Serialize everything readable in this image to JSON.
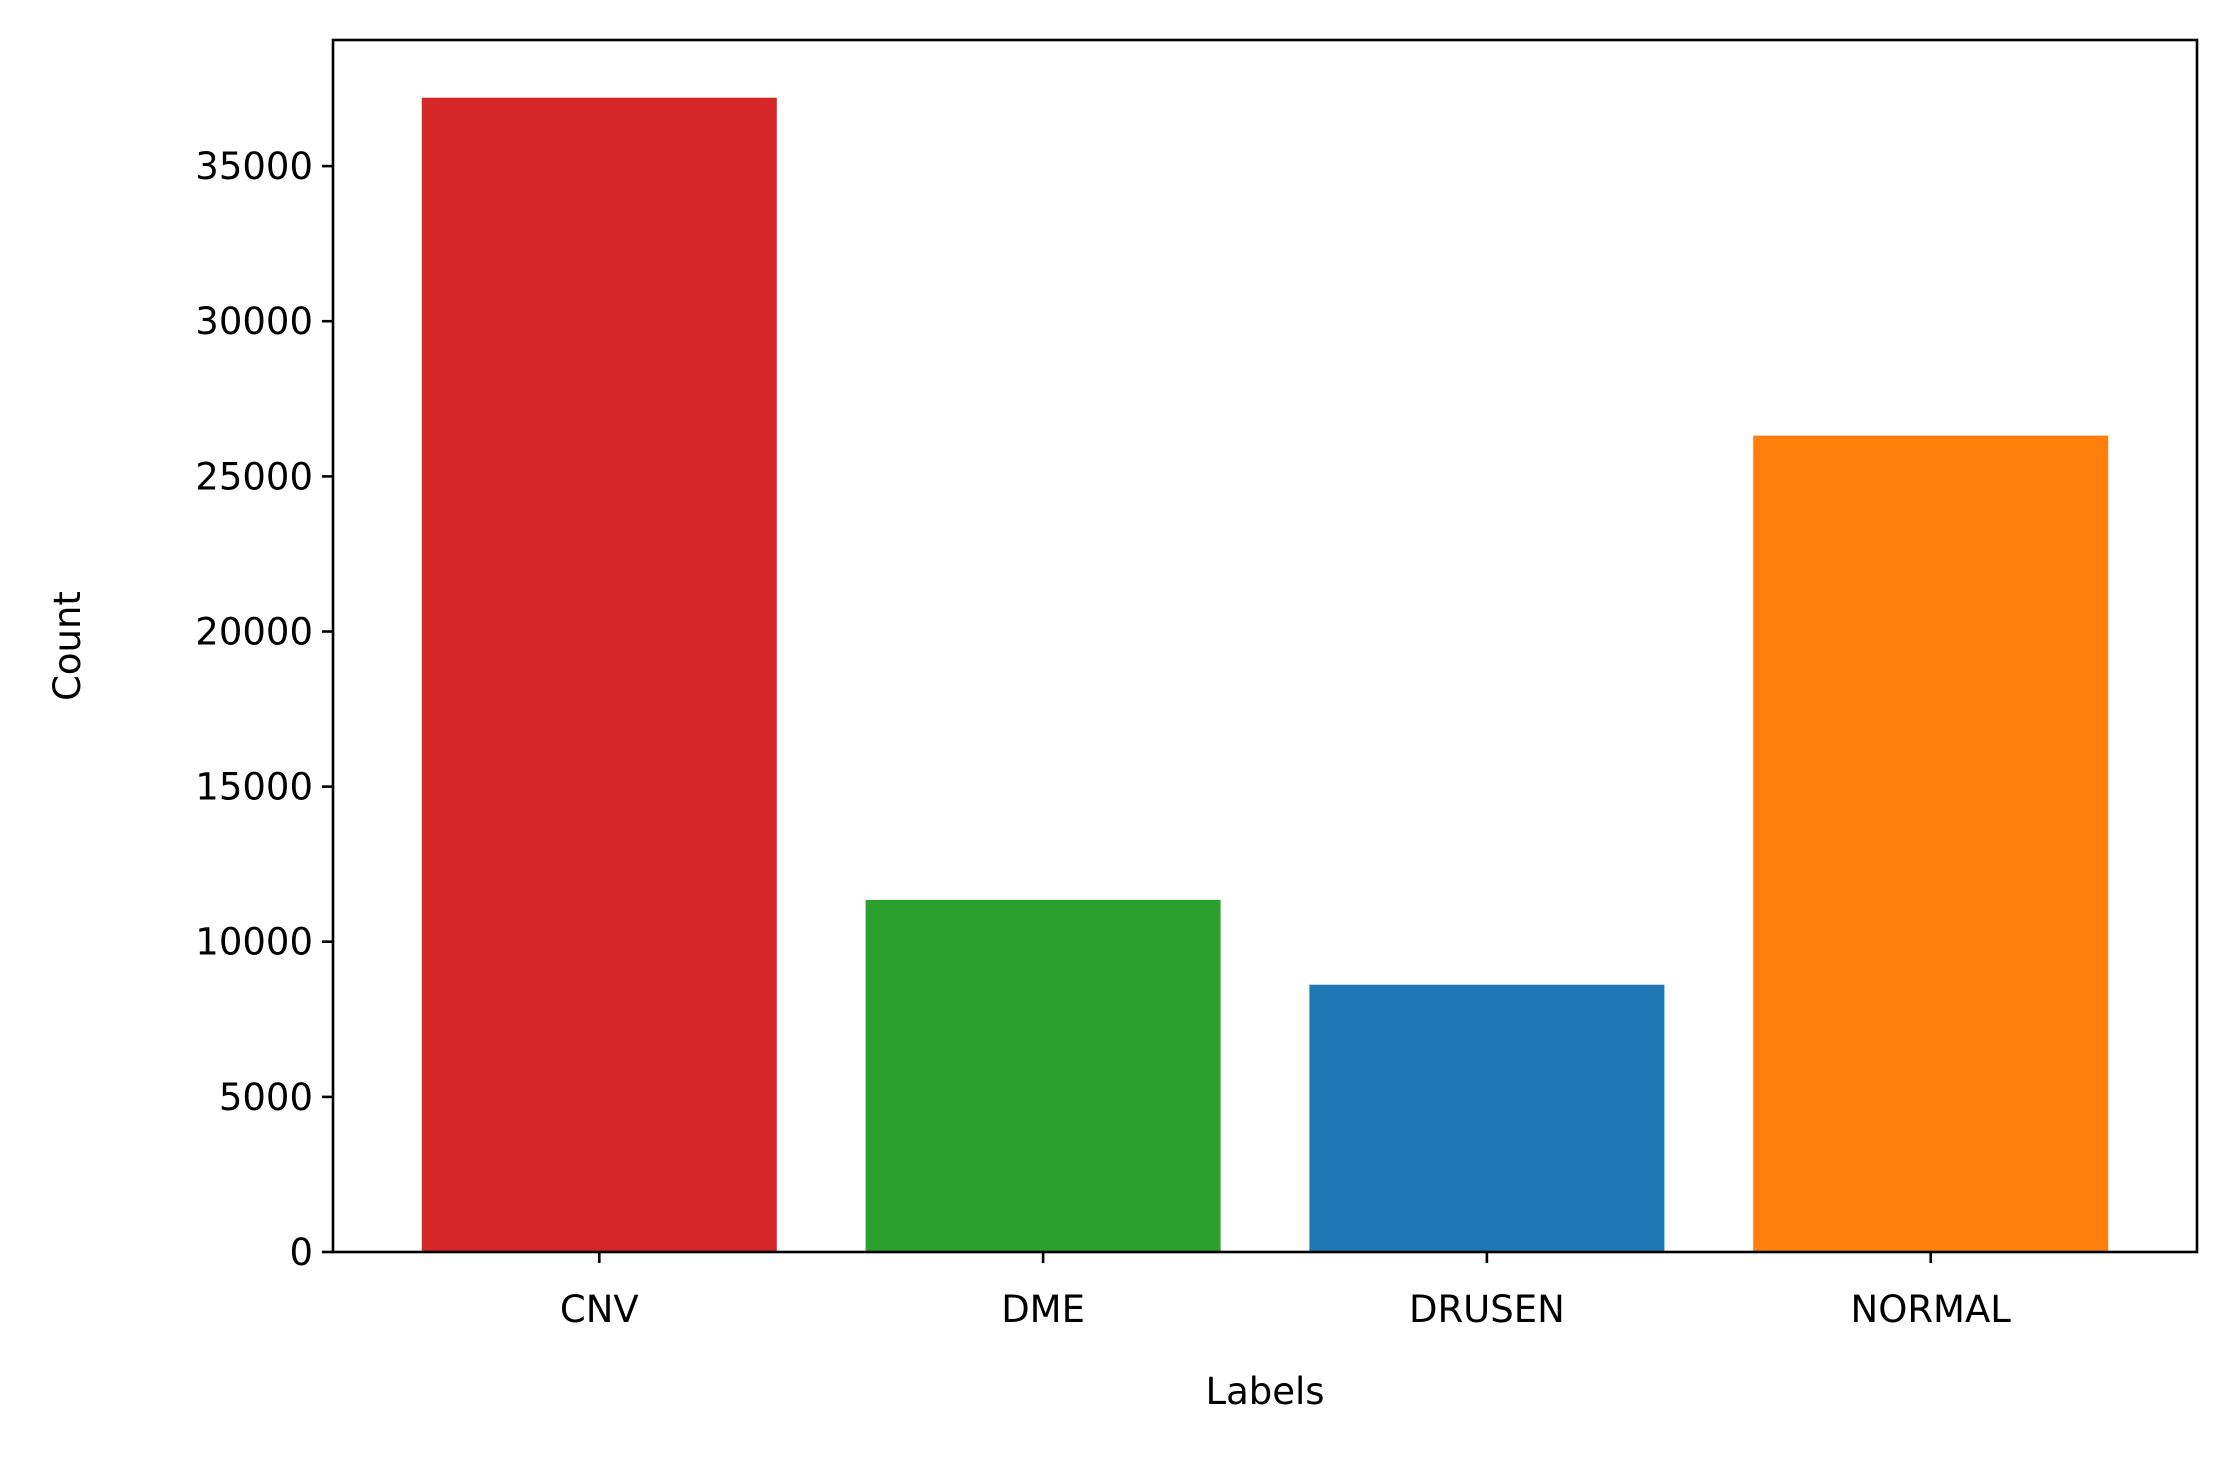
{
  "chart_data": {
    "type": "bar",
    "title": "",
    "xlabel": "Labels",
    "ylabel": "Count",
    "categories": [
      "CNV",
      "DME",
      "DRUSEN",
      "NORMAL"
    ],
    "values": [
      37205,
      11348,
      8616,
      26315
    ],
    "colors": [
      "#d62728",
      "#2ca02c",
      "#1f77b4",
      "#ff7f0e"
    ],
    "ylim": [
      0,
      39065
    ],
    "yticks": [
      0,
      5000,
      10000,
      15000,
      20000,
      25000,
      30000,
      35000
    ],
    "grid": false,
    "legend": "none"
  }
}
